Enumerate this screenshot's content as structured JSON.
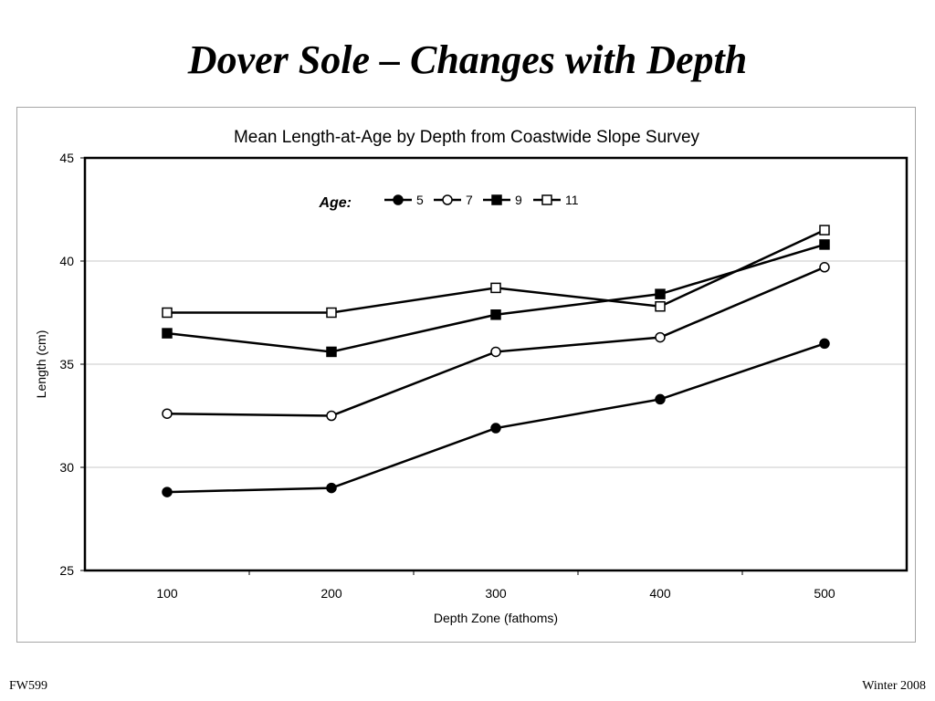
{
  "slide": {
    "title": "Dover Sole – Changes with Depth",
    "footer_left": "FW599",
    "footer_right": "Winter 2008"
  },
  "chart_data": {
    "type": "line",
    "title": "Mean Length-at-Age by Depth from Coastwide Slope Survey",
    "xlabel": "Depth Zone (fathoms)",
    "ylabel": "Length (cm)",
    "categories": [
      "100",
      "200",
      "300",
      "400",
      "500"
    ],
    "ylim": [
      25,
      45
    ],
    "yticks": [
      25,
      30,
      35,
      40,
      45
    ],
    "grid": "horizontal",
    "legend_title": "Age:",
    "legend_placement": "top",
    "series": [
      {
        "name": "5",
        "marker": "filled-circle",
        "values": [
          28.8,
          29.0,
          31.9,
          33.3,
          36.0
        ]
      },
      {
        "name": "7",
        "marker": "open-circle",
        "values": [
          32.6,
          32.5,
          35.6,
          36.3,
          39.7
        ]
      },
      {
        "name": "9",
        "marker": "filled-square",
        "values": [
          36.5,
          35.6,
          37.4,
          38.4,
          40.8
        ]
      },
      {
        "name": "11",
        "marker": "open-square",
        "values": [
          37.5,
          37.5,
          38.7,
          37.8,
          41.5
        ]
      }
    ]
  }
}
